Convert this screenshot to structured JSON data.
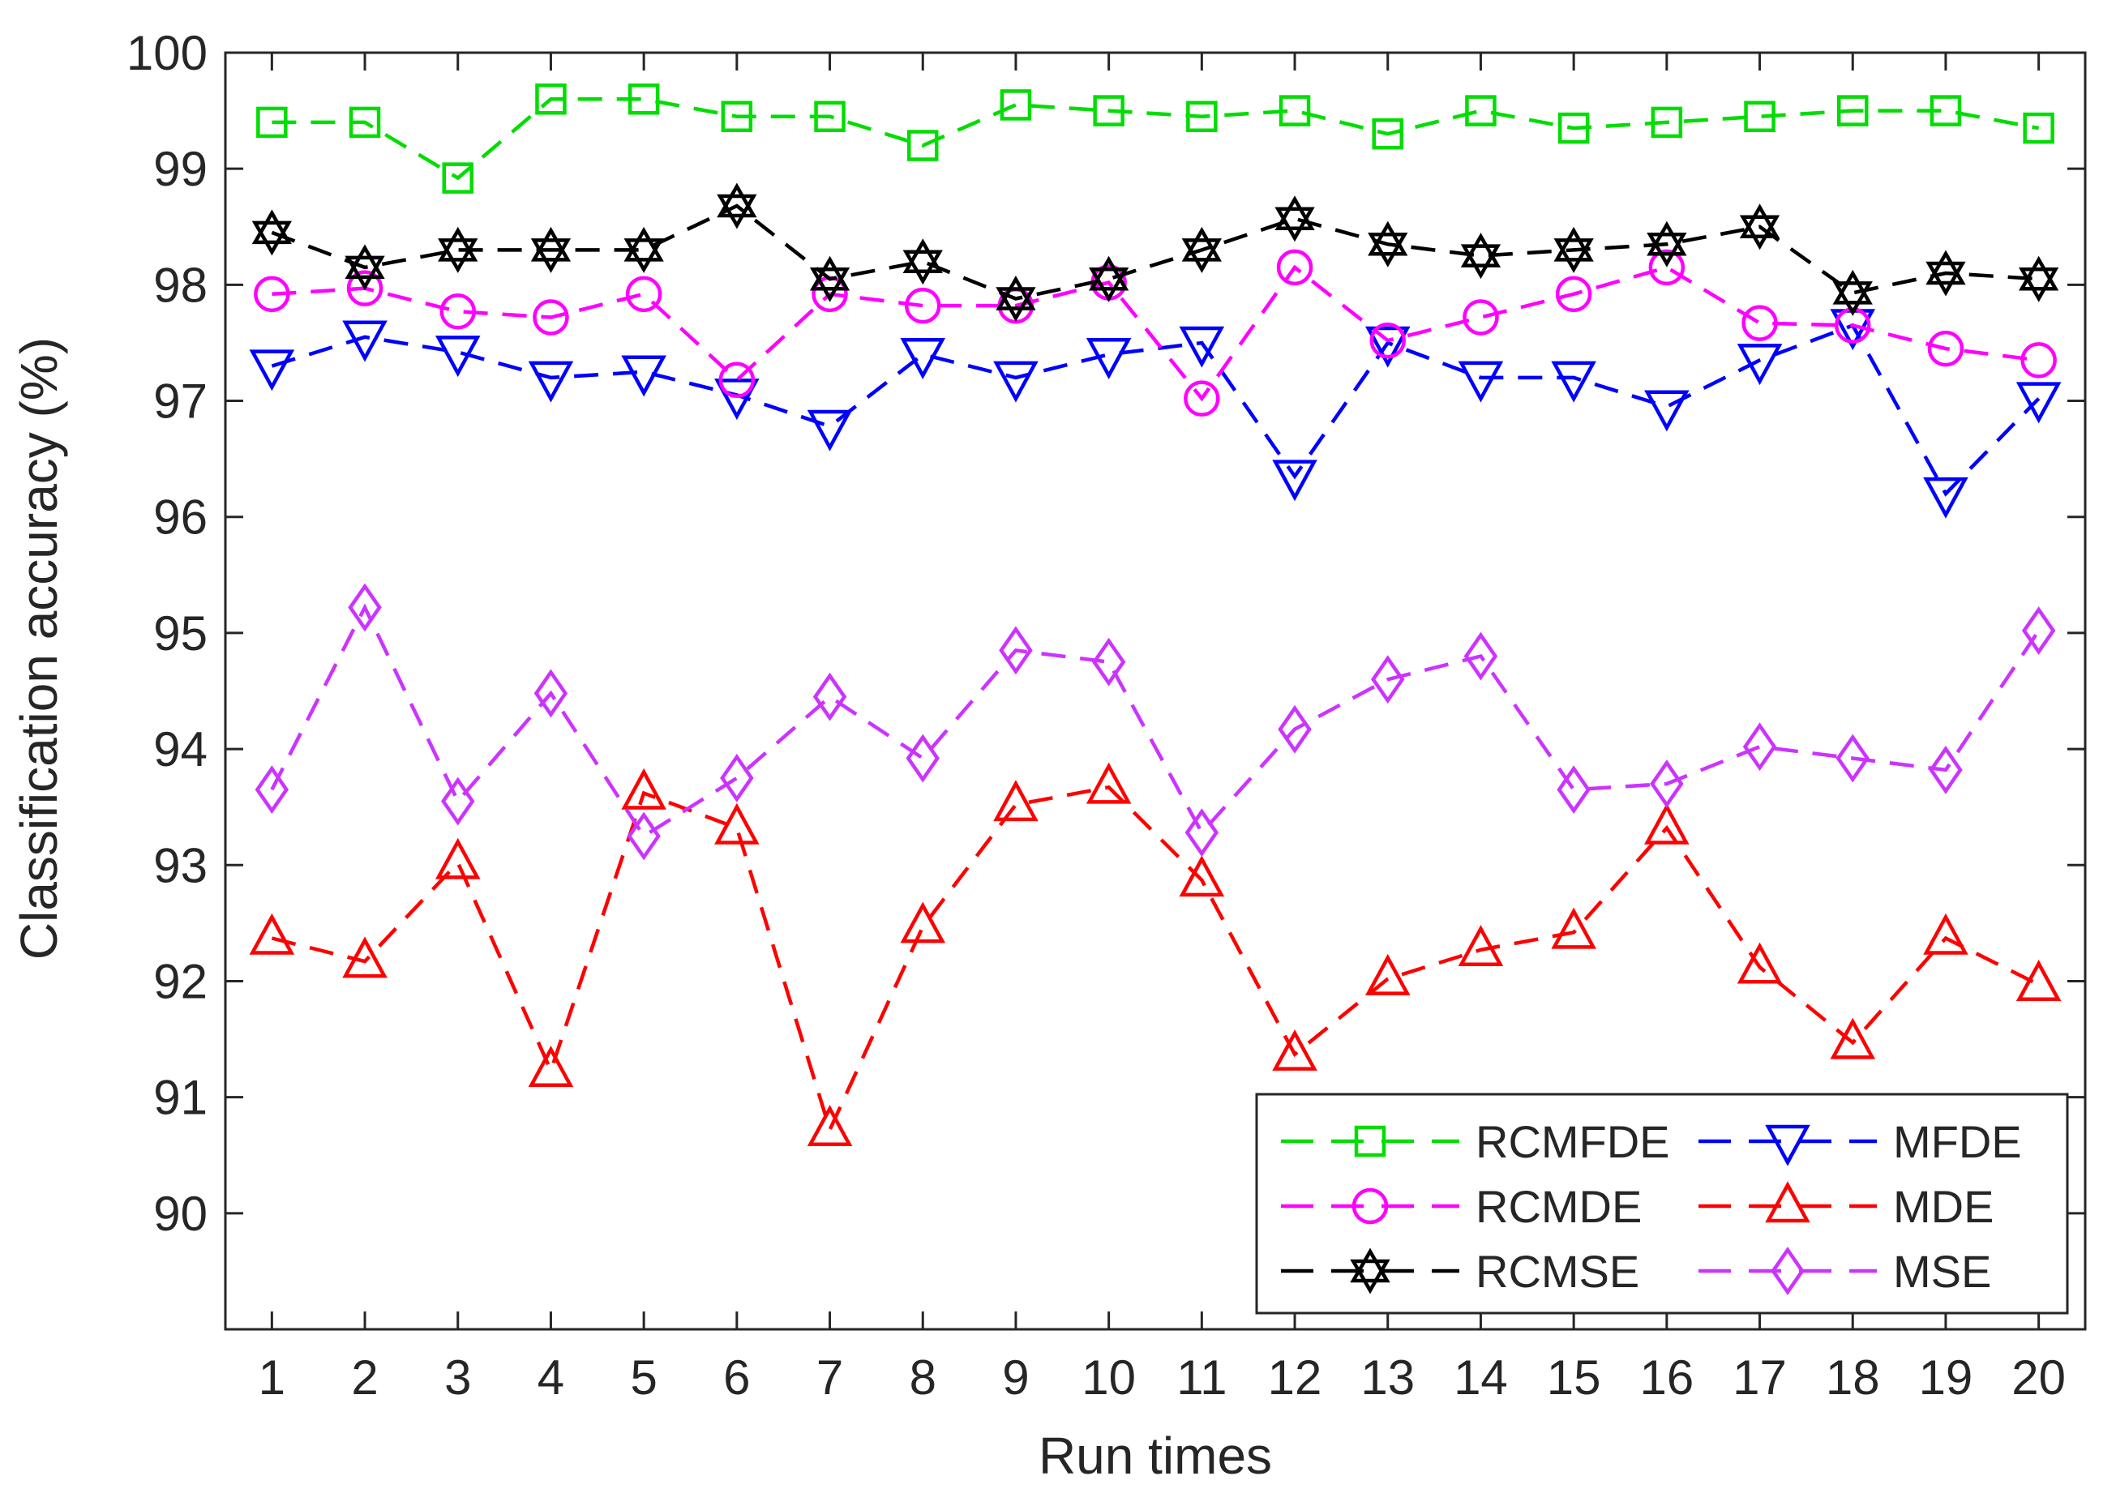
{
  "chart_data": {
    "type": "line",
    "title": "",
    "xlabel": "Run times",
    "ylabel": "Classification accuracy (%)",
    "xlim": [
      0.5,
      20.5
    ],
    "ylim": [
      89,
      100
    ],
    "xticks": [
      1,
      2,
      3,
      4,
      5,
      6,
      7,
      8,
      9,
      10,
      11,
      12,
      13,
      14,
      15,
      16,
      17,
      18,
      19,
      20
    ],
    "yticks": [
      90,
      91,
      92,
      93,
      94,
      95,
      96,
      97,
      98,
      99,
      100
    ],
    "grid": false,
    "legend_location": "bottom-right",
    "x": [
      1,
      2,
      3,
      4,
      5,
      6,
      7,
      8,
      9,
      10,
      11,
      12,
      13,
      14,
      15,
      16,
      17,
      18,
      19,
      20
    ],
    "series": [
      {
        "name": "RCMFDE",
        "color": "#00dd00",
        "marker": "square",
        "values": [
          99.4,
          99.4,
          98.92,
          99.6,
          99.6,
          99.45,
          99.45,
          99.2,
          99.55,
          99.5,
          99.45,
          99.5,
          99.3,
          99.5,
          99.35,
          99.4,
          99.45,
          99.5,
          99.5,
          99.35
        ]
      },
      {
        "name": "MFDE",
        "color": "#0000ff",
        "marker": "triangle-down",
        "values": [
          97.3,
          97.55,
          97.42,
          97.2,
          97.25,
          97.05,
          96.78,
          97.4,
          97.2,
          97.4,
          97.5,
          96.35,
          97.5,
          97.2,
          97.2,
          96.95,
          97.35,
          97.65,
          96.2,
          97.02
        ]
      },
      {
        "name": "RCMDE",
        "color": "#ff00ff",
        "marker": "circle",
        "values": [
          97.92,
          97.97,
          97.77,
          97.72,
          97.92,
          97.18,
          97.92,
          97.82,
          97.82,
          98.02,
          97.02,
          98.15,
          97.52,
          97.72,
          97.92,
          98.15,
          97.67,
          97.65,
          97.45,
          97.35
        ]
      },
      {
        "name": "MDE",
        "color": "#ff0000",
        "marker": "triangle-up",
        "values": [
          92.37,
          92.17,
          93.02,
          91.23,
          93.62,
          93.32,
          90.72,
          92.47,
          93.52,
          93.67,
          92.87,
          91.37,
          92.02,
          92.27,
          92.42,
          93.32,
          92.12,
          91.47,
          92.37,
          91.97
        ]
      },
      {
        "name": "RCMSE",
        "color": "#000000",
        "marker": "hexagram",
        "values": [
          98.45,
          98.15,
          98.3,
          98.3,
          98.3,
          98.68,
          98.05,
          98.2,
          97.88,
          98.05,
          98.3,
          98.57,
          98.35,
          98.25,
          98.3,
          98.35,
          98.5,
          97.93,
          98.1,
          98.05
        ]
      },
      {
        "name": "MSE",
        "color": "#cc33ff",
        "marker": "diamond",
        "values": [
          93.65,
          95.22,
          93.55,
          94.48,
          93.25,
          93.75,
          94.45,
          93.92,
          94.85,
          94.75,
          93.28,
          94.17,
          94.6,
          94.8,
          93.65,
          93.7,
          94.02,
          93.92,
          93.82,
          95.02
        ]
      }
    ]
  }
}
